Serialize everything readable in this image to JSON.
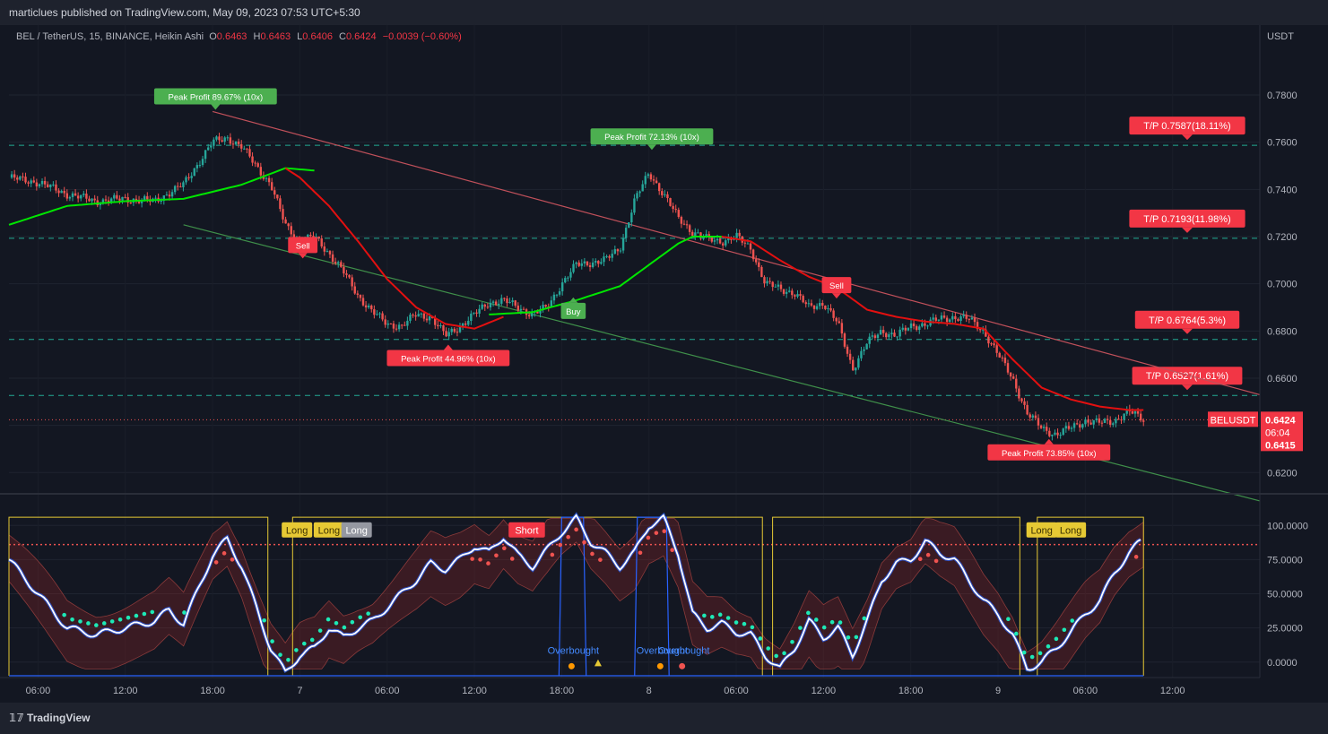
{
  "header": {
    "published": "marticlues published on TradingView.com, May 09, 2023 07:53 UTC+5:30"
  },
  "symbol": {
    "title": "BEL / TetherUS, 15, BINANCE, Heikin Ashi",
    "o_label": "O",
    "o": "0.6463",
    "h_label": "H",
    "h": "0.6463",
    "l_label": "L",
    "l": "0.6406",
    "c_label": "C",
    "c": "0.6424",
    "change": "−0.0039 (−0.60%)"
  },
  "footer": {
    "brand": "TradingView"
  },
  "colors": {
    "up": "#26a69a",
    "down": "#ef5350",
    "ema": "#00e600",
    "ma": "#e31010",
    "tp": "#22ab94",
    "label_red": "#f23645",
    "label_green": "#4caf50",
    "osc": "#ffffff"
  },
  "chart_data": [
    {
      "type": "line",
      "title": "BEL / TetherUS, 15, BINANCE, Heikin Ashi",
      "yaxis_unit": "USDT",
      "y_ticks": [
        "0.7800",
        "0.7600",
        "0.7400",
        "0.7200",
        "0.7000",
        "0.6800",
        "0.6600",
        "0.6400",
        "0.6200"
      ],
      "ylim": [
        0.611,
        0.799
      ],
      "x_ticks": [
        "06:00",
        "12:00",
        "18:00",
        "7",
        "06:00",
        "12:00",
        "18:00",
        "8",
        "06:00",
        "12:00",
        "18:00",
        "9",
        "06:00",
        "12:00"
      ],
      "last_price": {
        "symbol": "BELUSDT",
        "price": "0.6424",
        "countdown": "06:04",
        "low_marker": "0.6415",
        "value": 0.6424
      },
      "take_profit_levels": [
        {
          "label": "T/P 0.7587(18.11%)",
          "value": 0.7587
        },
        {
          "label": "T/P 0.7193(11.98%)",
          "value": 0.7193
        },
        {
          "label": "T/P 0.6764(5.3%)",
          "value": 0.6764
        },
        {
          "label": "T/P 0.6527(1.61%)",
          "value": 0.6527
        }
      ],
      "price_path": [
        {
          "t": 0,
          "v": 0.745
        },
        {
          "t": 2,
          "v": 0.743
        },
        {
          "t": 4,
          "v": 0.738
        },
        {
          "t": 6,
          "v": 0.735
        },
        {
          "t": 8,
          "v": 0.736
        },
        {
          "t": 10,
          "v": 0.735
        },
        {
          "t": 12,
          "v": 0.742
        },
        {
          "t": 14,
          "v": 0.76
        },
        {
          "t": 15,
          "v": 0.762
        },
        {
          "t": 16,
          "v": 0.758
        },
        {
          "t": 17,
          "v": 0.75
        },
        {
          "t": 18,
          "v": 0.742
        },
        {
          "t": 19,
          "v": 0.725
        },
        {
          "t": 20,
          "v": 0.718
        },
        {
          "t": 21,
          "v": 0.72
        },
        {
          "t": 22,
          "v": 0.713
        },
        {
          "t": 23,
          "v": 0.705
        },
        {
          "t": 24,
          "v": 0.695
        },
        {
          "t": 25,
          "v": 0.688
        },
        {
          "t": 26,
          "v": 0.683
        },
        {
          "t": 27,
          "v": 0.682
        },
        {
          "t": 28,
          "v": 0.687
        },
        {
          "t": 29,
          "v": 0.686
        },
        {
          "t": 30,
          "v": 0.678
        },
        {
          "t": 31,
          "v": 0.682
        },
        {
          "t": 32,
          "v": 0.687
        },
        {
          "t": 33,
          "v": 0.692
        },
        {
          "t": 34,
          "v": 0.693
        },
        {
          "t": 35,
          "v": 0.69
        },
        {
          "t": 36,
          "v": 0.687
        },
        {
          "t": 37,
          "v": 0.69
        },
        {
          "t": 38,
          "v": 0.7
        },
        {
          "t": 39,
          "v": 0.708
        },
        {
          "t": 40,
          "v": 0.709
        },
        {
          "t": 41,
          "v": 0.71
        },
        {
          "t": 42,
          "v": 0.715
        },
        {
          "t": 43,
          "v": 0.735
        },
        {
          "t": 44,
          "v": 0.747
        },
        {
          "t": 45,
          "v": 0.738
        },
        {
          "t": 46,
          "v": 0.728
        },
        {
          "t": 47,
          "v": 0.722
        },
        {
          "t": 48,
          "v": 0.719
        },
        {
          "t": 49,
          "v": 0.718
        },
        {
          "t": 50,
          "v": 0.72
        },
        {
          "t": 51,
          "v": 0.715
        },
        {
          "t": 52,
          "v": 0.7
        },
        {
          "t": 53,
          "v": 0.698
        },
        {
          "t": 54,
          "v": 0.696
        },
        {
          "t": 55,
          "v": 0.69
        },
        {
          "t": 56,
          "v": 0.692
        },
        {
          "t": 57,
          "v": 0.683
        },
        {
          "t": 58,
          "v": 0.664
        },
        {
          "t": 59,
          "v": 0.675
        },
        {
          "t": 60,
          "v": 0.68
        },
        {
          "t": 61,
          "v": 0.678
        },
        {
          "t": 62,
          "v": 0.682
        },
        {
          "t": 63,
          "v": 0.683
        },
        {
          "t": 64,
          "v": 0.685
        },
        {
          "t": 65,
          "v": 0.686
        },
        {
          "t": 66,
          "v": 0.685
        },
        {
          "t": 67,
          "v": 0.68
        },
        {
          "t": 68,
          "v": 0.67
        },
        {
          "t": 69,
          "v": 0.66
        },
        {
          "t": 70,
          "v": 0.645
        },
        {
          "t": 71,
          "v": 0.639
        },
        {
          "t": 72,
          "v": 0.636
        },
        {
          "t": 73,
          "v": 0.639
        },
        {
          "t": 74,
          "v": 0.642
        },
        {
          "t": 75,
          "v": 0.641
        },
        {
          "t": 76,
          "v": 0.642
        },
        {
          "t": 77,
          "v": 0.646
        },
        {
          "t": 78,
          "v": 0.6424
        }
      ],
      "ema_path": [
        {
          "t": 0,
          "v": 0.725
        },
        {
          "t": 4,
          "v": 0.733
        },
        {
          "t": 8,
          "v": 0.735
        },
        {
          "t": 12,
          "v": 0.736
        },
        {
          "t": 16,
          "v": 0.742
        },
        {
          "t": 19,
          "v": 0.749
        },
        {
          "t": 21,
          "v": 0.748
        }
      ],
      "ema_path_2": [
        {
          "t": 33,
          "v": 0.687
        },
        {
          "t": 36,
          "v": 0.688
        },
        {
          "t": 39,
          "v": 0.693
        },
        {
          "t": 42,
          "v": 0.699
        },
        {
          "t": 44,
          "v": 0.708
        },
        {
          "t": 46,
          "v": 0.717
        },
        {
          "t": 47,
          "v": 0.72
        },
        {
          "t": 49,
          "v": 0.72
        }
      ],
      "ma_path": [
        {
          "t": 19,
          "v": 0.749
        },
        {
          "t": 20,
          "v": 0.745
        },
        {
          "t": 22,
          "v": 0.733
        },
        {
          "t": 24,
          "v": 0.718
        },
        {
          "t": 26,
          "v": 0.702
        },
        {
          "t": 28,
          "v": 0.69
        },
        {
          "t": 30,
          "v": 0.683
        },
        {
          "t": 32,
          "v": 0.681
        },
        {
          "t": 34,
          "v": 0.686
        }
      ],
      "ma_path_2": [
        {
          "t": 49,
          "v": 0.72
        },
        {
          "t": 51,
          "v": 0.718
        },
        {
          "t": 53,
          "v": 0.71
        },
        {
          "t": 55,
          "v": 0.703
        },
        {
          "t": 57,
          "v": 0.698
        },
        {
          "t": 59,
          "v": 0.689
        },
        {
          "t": 61,
          "v": 0.686
        },
        {
          "t": 63,
          "v": 0.684
        },
        {
          "t": 65,
          "v": 0.683
        },
        {
          "t": 67,
          "v": 0.681
        },
        {
          "t": 69,
          "v": 0.668
        },
        {
          "t": 71,
          "v": 0.656
        },
        {
          "t": 73,
          "v": 0.651
        },
        {
          "t": 75,
          "v": 0.648
        },
        {
          "t": 77,
          "v": 0.6465
        },
        {
          "t": 78,
          "v": 0.6465
        }
      ],
      "trendline_upper": [
        {
          "t": 14,
          "v": 0.773
        },
        {
          "t": 86,
          "v": 0.653
        }
      ],
      "trendline_lower": [
        {
          "t": 12,
          "v": 0.725
        },
        {
          "t": 86,
          "v": 0.608
        }
      ],
      "annotations": [
        {
          "text": "Peak Profit 89.67% (10x)",
          "t": 14.2,
          "v": 0.773,
          "pos": "above",
          "color": "green"
        },
        {
          "text": "Peak Profit 72.13% (10x)",
          "t": 44.2,
          "v": 0.756,
          "pos": "above",
          "color": "green"
        },
        {
          "text": "Peak Profit 44.96% (10x)",
          "t": 30.2,
          "v": 0.675,
          "pos": "below",
          "color": "red"
        },
        {
          "text": "Peak Profit 73.85% (10x)",
          "t": 71.5,
          "v": 0.635,
          "pos": "below",
          "color": "red"
        },
        {
          "text": "Sell",
          "t": 20.2,
          "v": 0.71,
          "pos": "above",
          "color": "red"
        },
        {
          "text": "Sell",
          "t": 56.9,
          "v": 0.693,
          "pos": "above",
          "color": "red"
        },
        {
          "text": "Buy",
          "t": 38.8,
          "v": 0.695,
          "pos": "below",
          "color": "green"
        }
      ]
    },
    {
      "type": "line",
      "y_ticks": [
        "100.0000",
        "75.0000",
        "50.0000",
        "25.0000",
        "0.0000"
      ],
      "ylim": [
        -10,
        110
      ],
      "overbought_level": 86,
      "oscillator": [
        {
          "t": 0,
          "v": 75
        },
        {
          "t": 2,
          "v": 50
        },
        {
          "t": 4,
          "v": 25
        },
        {
          "t": 6,
          "v": 20
        },
        {
          "t": 8,
          "v": 25
        },
        {
          "t": 10,
          "v": 30
        },
        {
          "t": 11,
          "v": 38
        },
        {
          "t": 12,
          "v": 28
        },
        {
          "t": 14,
          "v": 78
        },
        {
          "t": 15,
          "v": 90
        },
        {
          "t": 16,
          "v": 70
        },
        {
          "t": 17,
          "v": 40
        },
        {
          "t": 18,
          "v": 10
        },
        {
          "t": 19,
          "v": -8
        },
        {
          "t": 20,
          "v": 5
        },
        {
          "t": 21,
          "v": 10
        },
        {
          "t": 22,
          "v": 25
        },
        {
          "t": 23,
          "v": 18
        },
        {
          "t": 24,
          "v": 25
        },
        {
          "t": 25,
          "v": 30
        },
        {
          "t": 26,
          "v": 40
        },
        {
          "t": 27,
          "v": 50
        },
        {
          "t": 28,
          "v": 60
        },
        {
          "t": 29,
          "v": 72
        },
        {
          "t": 30,
          "v": 68
        },
        {
          "t": 31,
          "v": 75
        },
        {
          "t": 32,
          "v": 85
        },
        {
          "t": 33,
          "v": 80
        },
        {
          "t": 34,
          "v": 92
        },
        {
          "t": 35,
          "v": 78
        },
        {
          "t": 36,
          "v": 70
        },
        {
          "t": 37,
          "v": 82
        },
        {
          "t": 38,
          "v": 95
        },
        {
          "t": 39,
          "v": 105
        },
        {
          "t": 40,
          "v": 88
        },
        {
          "t": 41,
          "v": 80
        },
        {
          "t": 42,
          "v": 70
        },
        {
          "t": 43,
          "v": 80
        },
        {
          "t": 44,
          "v": 100
        },
        {
          "t": 45,
          "v": 105
        },
        {
          "t": 46,
          "v": 80
        },
        {
          "t": 47,
          "v": 35
        },
        {
          "t": 48,
          "v": 25
        },
        {
          "t": 49,
          "v": 28
        },
        {
          "t": 50,
          "v": 22
        },
        {
          "t": 51,
          "v": 20
        },
        {
          "t": 52,
          "v": 5
        },
        {
          "t": 53,
          "v": -5
        },
        {
          "t": 54,
          "v": 10
        },
        {
          "t": 55,
          "v": 30
        },
        {
          "t": 56,
          "v": 18
        },
        {
          "t": 57,
          "v": 25
        },
        {
          "t": 58,
          "v": 5
        },
        {
          "t": 59,
          "v": 30
        },
        {
          "t": 60,
          "v": 60
        },
        {
          "t": 61,
          "v": 72
        },
        {
          "t": 62,
          "v": 75
        },
        {
          "t": 63,
          "v": 88
        },
        {
          "t": 64,
          "v": 80
        },
        {
          "t": 65,
          "v": 75
        },
        {
          "t": 66,
          "v": 60
        },
        {
          "t": 67,
          "v": 45
        },
        {
          "t": 68,
          "v": 35
        },
        {
          "t": 69,
          "v": 20
        },
        {
          "t": 70,
          "v": -5
        },
        {
          "t": 71,
          "v": 0
        },
        {
          "t": 72,
          "v": 10
        },
        {
          "t": 73,
          "v": 22
        },
        {
          "t": 74,
          "v": 35
        },
        {
          "t": 75,
          "v": 45
        },
        {
          "t": 76,
          "v": 65
        },
        {
          "t": 77,
          "v": 80
        },
        {
          "t": 78,
          "v": 90
        }
      ],
      "band_upper_offset": 18,
      "band_lower_offset": 22,
      "overbought_zones": [
        {
          "t0": 38,
          "t1": 39.5
        },
        {
          "t0": 43.2,
          "t1": 45.2
        }
      ],
      "signal_lines": [
        {
          "t0": 0,
          "t1": 17.8
        },
        {
          "t0": 19.5,
          "t1": 51.8
        },
        {
          "t0": 52.5,
          "t1": 69.5
        },
        {
          "t0": 70.7,
          "t1": 78
        }
      ],
      "annotations": [
        {
          "text": "Long",
          "t": 19.8,
          "pos": "top",
          "color": "yellow"
        },
        {
          "text": "Long",
          "t": 22.0,
          "pos": "top",
          "color": "yellow"
        },
        {
          "text": "Long",
          "t": 23.9,
          "pos": "top",
          "color": "gray"
        },
        {
          "text": "Short",
          "t": 35.6,
          "pos": "top",
          "color": "red"
        },
        {
          "text": "Long",
          "t": 71.0,
          "pos": "top",
          "color": "yellow"
        },
        {
          "text": "Long",
          "t": 73.0,
          "pos": "top",
          "color": "yellow"
        },
        {
          "text": "Overbought",
          "t": 38.8,
          "pos": "bottom",
          "color": "blue"
        },
        {
          "text": "Overbought",
          "t": 44.9,
          "pos": "bottom",
          "color": "blue"
        },
        {
          "text": "Overbought",
          "t": 46.4,
          "pos": "bottom",
          "color": "blue"
        }
      ]
    }
  ]
}
